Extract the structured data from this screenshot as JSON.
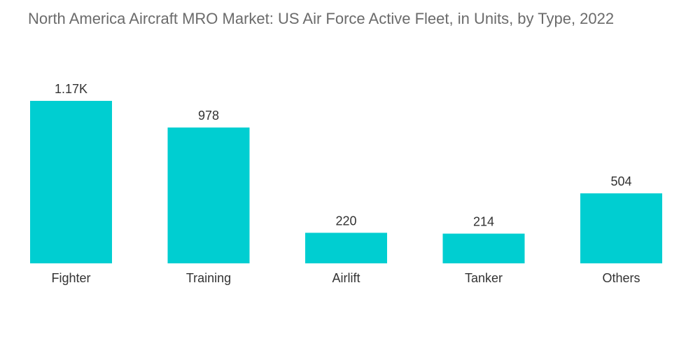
{
  "title": "North America Aircraft MRO Market: US Air Force Active Fleet, in Units, by Type, 2022",
  "colors": {
    "bar": "#00CED1"
  },
  "chart_data": {
    "type": "bar",
    "title": "North America Aircraft MRO Market: US Air Force Active Fleet, in Units, by Type, 2022",
    "categories": [
      "Fighter",
      "Training",
      "Airlift",
      "Tanker",
      "Others"
    ],
    "values": [
      1170,
      978,
      220,
      214,
      504
    ],
    "value_labels": [
      "1.17K",
      "978",
      "220",
      "214",
      "504"
    ],
    "xlabel": "",
    "ylabel": "",
    "ylim": [
      0,
      1170
    ],
    "grid": false,
    "legend": "none"
  }
}
